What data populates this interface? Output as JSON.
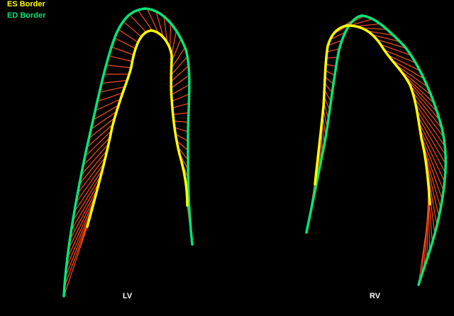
{
  "legend": {
    "es_label": "ES Border",
    "ed_label": "ED Border",
    "es_color": "#ffff00",
    "ed_color": "#00e676",
    "chord_color": "#ff4a1a"
  },
  "panels": {
    "lv_label": "LV",
    "rv_label": "RV"
  }
}
